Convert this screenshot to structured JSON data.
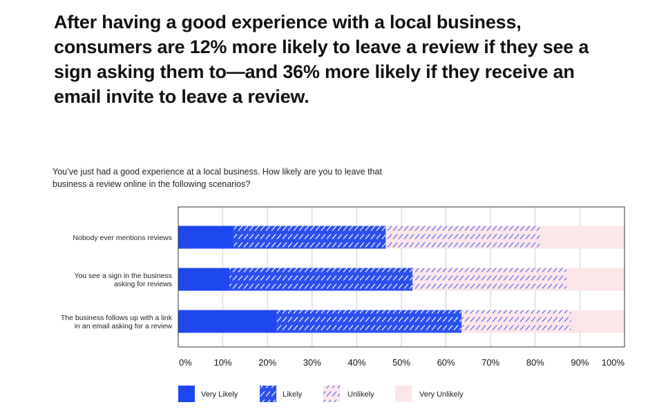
{
  "headline": "After having a good experience with a local business, consumers are 12% more likely to leave a review if they see a sign asking them to—and 36% more likely if they receive an email invite to leave a review.",
  "question": "You’ve just had a good experience at a local business. How likely are you to leave that business a review online in the following scenarios?",
  "colors": {
    "very_likely": "#1f47f0",
    "likely_bg": "#2b50ee",
    "likely_hatch": "#ffffff",
    "unlikely_bg": "#fbe7ea",
    "unlikely_hatch": "#5367ee",
    "very_unlikely": "#fce6e7",
    "grid": "#cccccc",
    "axis": "#333333"
  },
  "chart_data": {
    "type": "bar",
    "orientation": "horizontal",
    "stacked": true,
    "title": "",
    "xlabel": "",
    "ylabel": "",
    "xlim": [
      0,
      100
    ],
    "tick_labels": [
      "0%",
      "10%",
      "20%",
      "30%",
      "40%",
      "50%",
      "60%",
      "70%",
      "80%",
      "90%",
      "100%"
    ],
    "categories": [
      [
        "Nobody ever mentions reviews"
      ],
      [
        "You see a sign in the business",
        "asking for reviews"
      ],
      [
        "The business follows up with a link",
        "in an email asking for a review"
      ]
    ],
    "series": [
      {
        "name": "Very Likely",
        "values": [
          12.5,
          11.5,
          22
        ]
      },
      {
        "name": "Likely",
        "values": [
          34,
          41,
          41.5
        ]
      },
      {
        "name": "Unlikely",
        "values": [
          34.5,
          34.5,
          24.5
        ]
      },
      {
        "name": "Very Unlikely",
        "values": [
          19,
          13,
          12
        ]
      }
    ],
    "grid": true,
    "legend": "bottom"
  }
}
